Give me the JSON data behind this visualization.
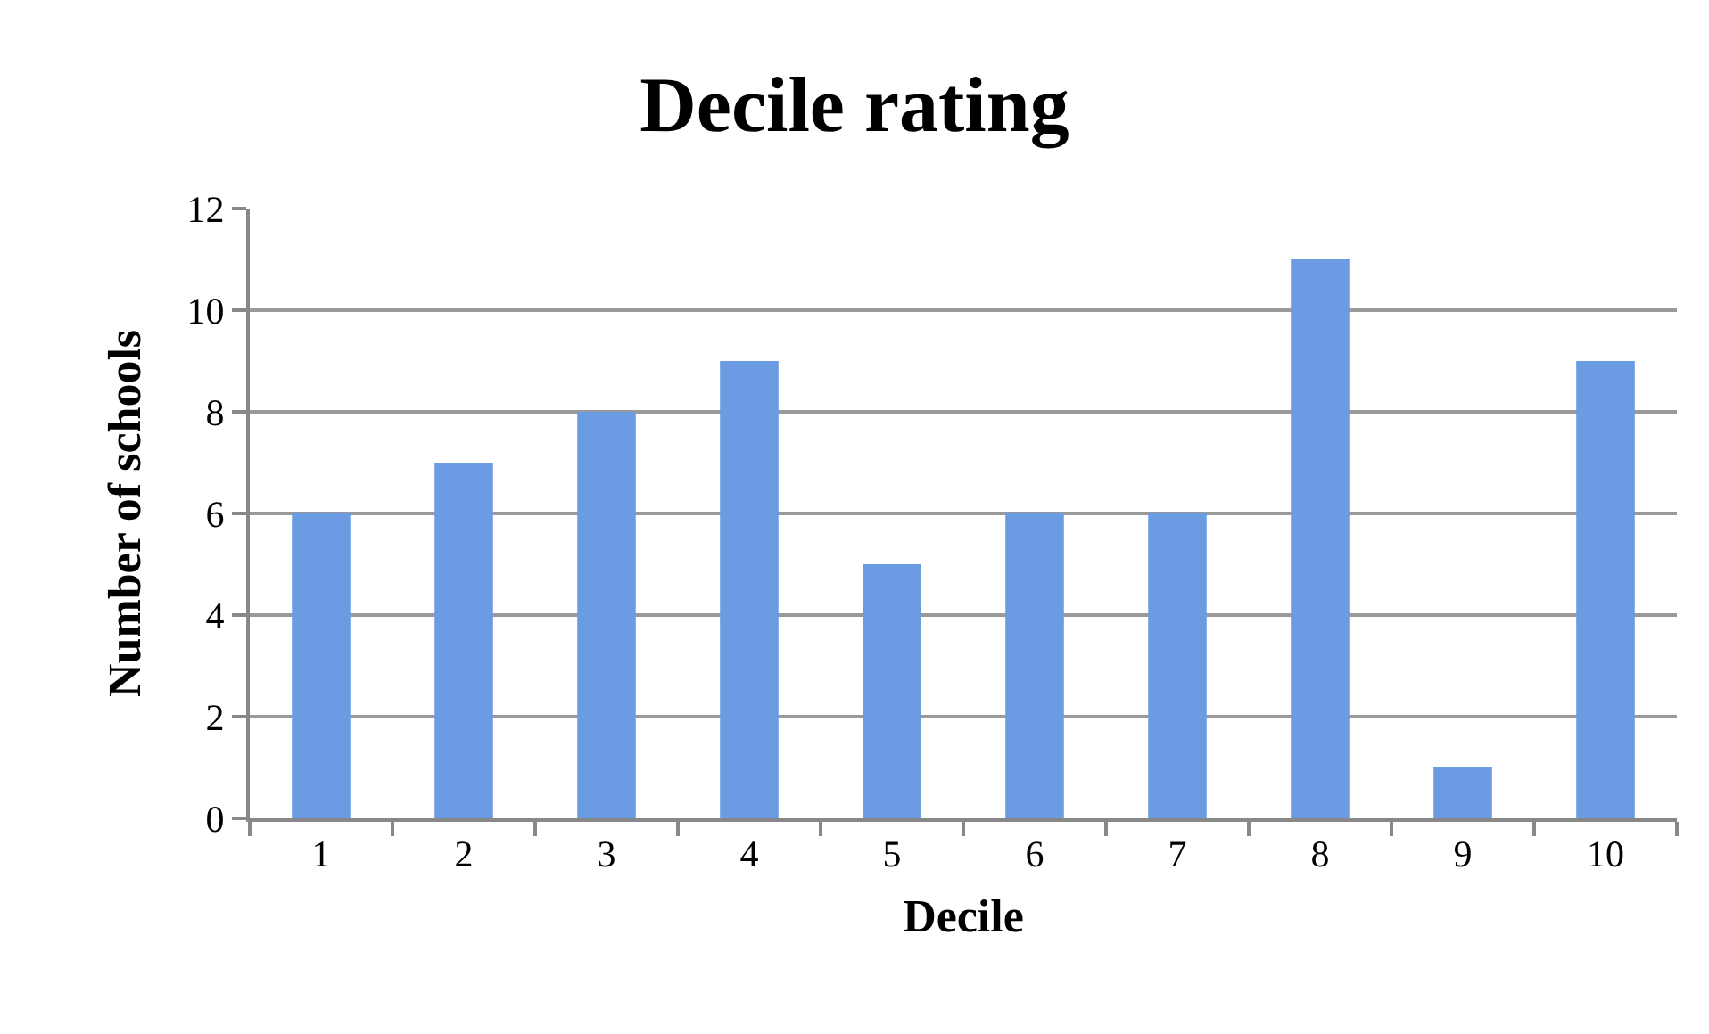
{
  "chart_data": {
    "type": "bar",
    "title": "Decile rating",
    "xlabel": "Decile",
    "ylabel": "Number of schools",
    "categories": [
      "1",
      "2",
      "3",
      "4",
      "5",
      "6",
      "7",
      "8",
      "9",
      "10"
    ],
    "values": [
      6,
      7,
      8,
      9,
      5,
      6,
      6,
      11,
      1,
      9
    ],
    "color": "#6a9be3",
    "ylim": [
      0,
      12
    ],
    "yticks": [
      0,
      2,
      4,
      6,
      8,
      10,
      12
    ],
    "grid": "y"
  }
}
